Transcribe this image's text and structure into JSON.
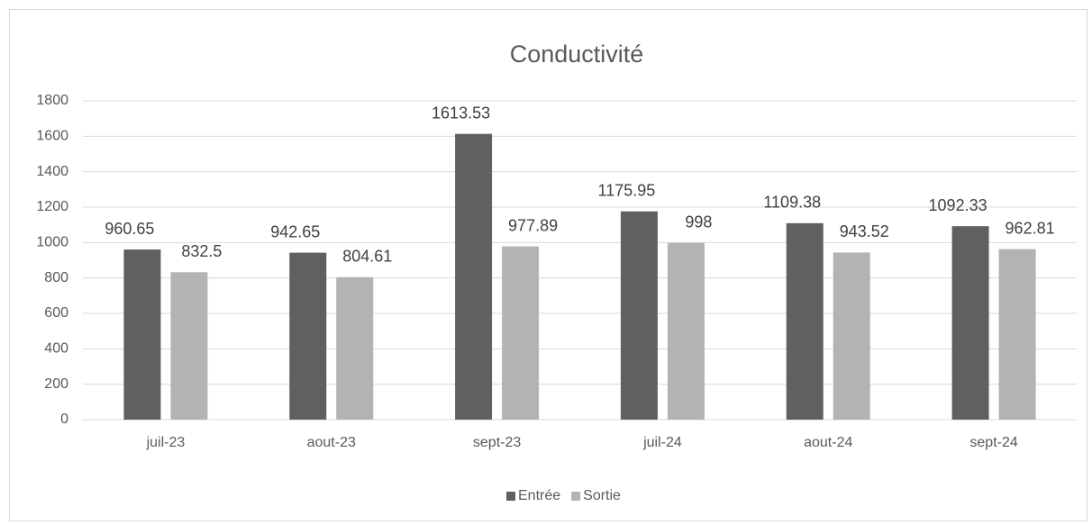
{
  "chart_data": {
    "type": "bar",
    "title": "Conductivité",
    "categories": [
      "juil-23",
      "aout-23",
      "sept-23",
      "juil-24",
      "aout-24",
      "sept-24"
    ],
    "series": [
      {
        "name": "Entrée",
        "color": "#606060",
        "values": [
          960.65,
          942.65,
          1613.53,
          1175.95,
          1109.38,
          1092.33
        ]
      },
      {
        "name": "Sortie",
        "color": "#b3b3b3",
        "values": [
          832.5,
          804.61,
          977.89,
          998,
          943.52,
          962.81
        ]
      }
    ],
    "ylim": [
      0,
      1800
    ],
    "yticks": [
      0,
      200,
      400,
      600,
      800,
      1000,
      1200,
      1400,
      1600,
      1800
    ],
    "grid": true,
    "legend": "bottom"
  }
}
